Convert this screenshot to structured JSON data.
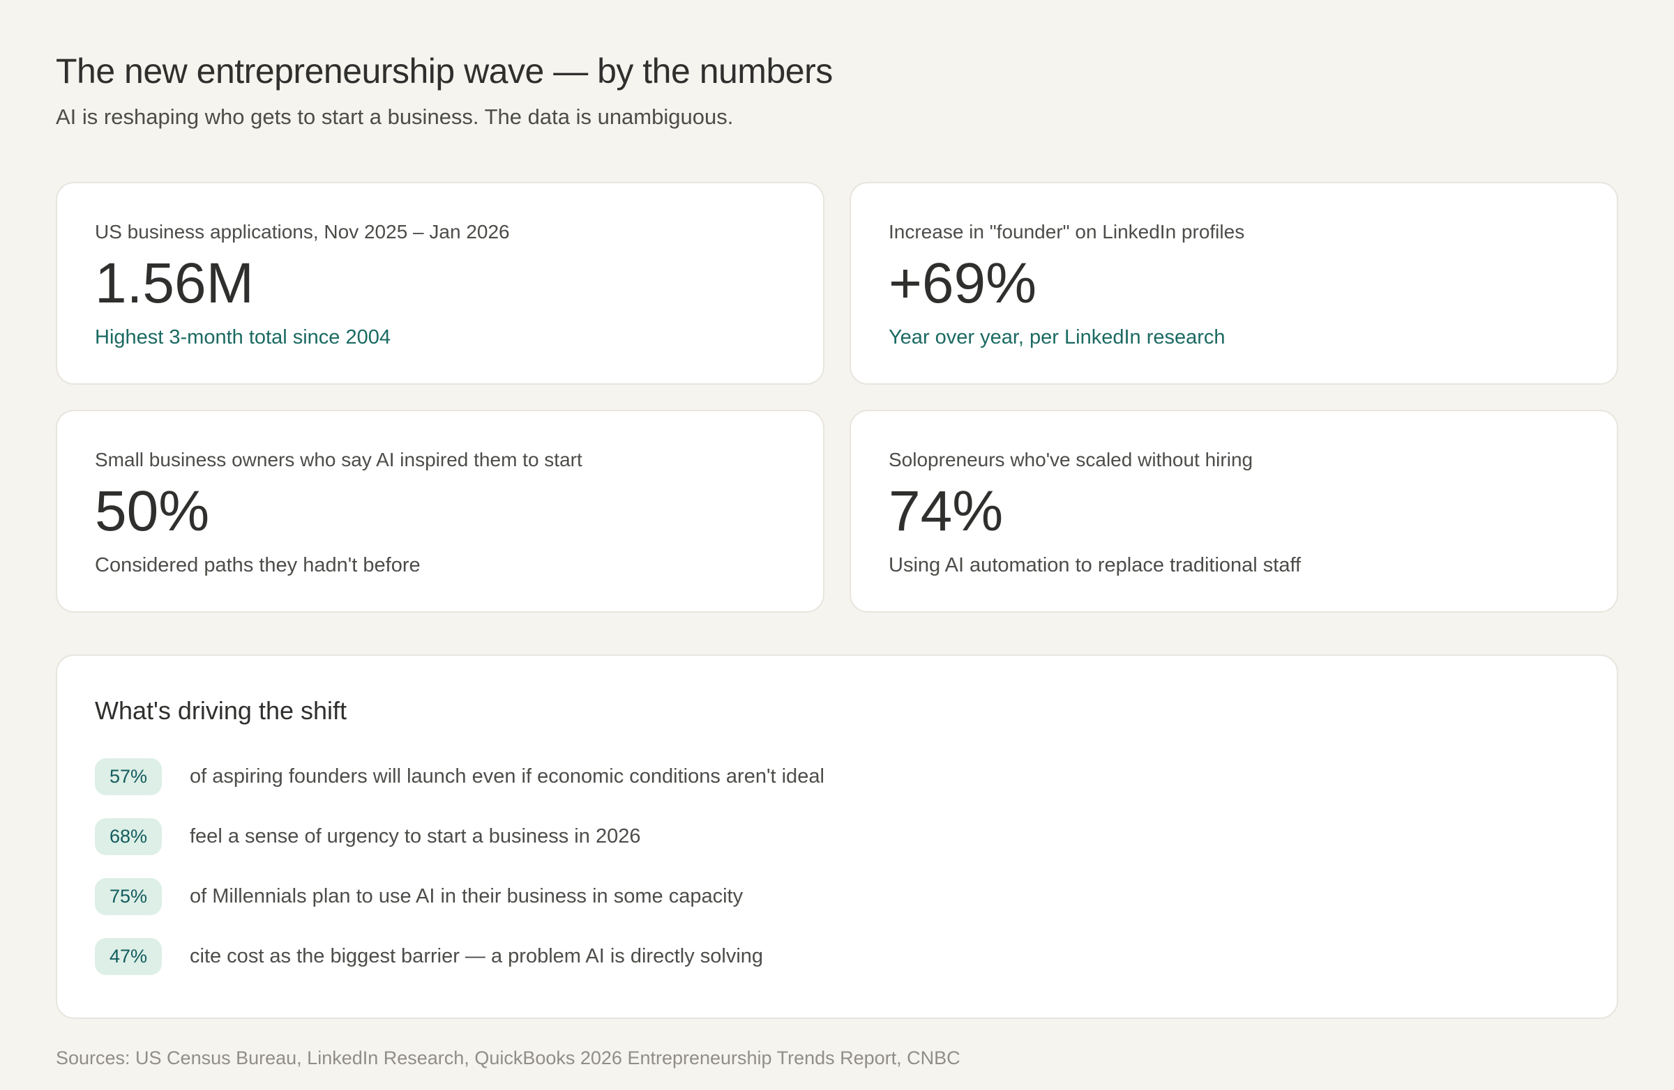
{
  "page": {
    "title": "The new entrepreneurship wave — by the numbers",
    "subtitle": "AI is reshaping who gets to start a business. The data is unambiguous.",
    "sources": "Sources: US Census Bureau, LinkedIn Research, QuickBooks 2026 Entrepreneurship Trends Report, CNBC"
  },
  "stat_cards": [
    {
      "label": "US business applications, Nov 2025 – Jan 2026",
      "value": "1.56M",
      "note": "Highest 3-month total since 2004",
      "note_style": "teal"
    },
    {
      "label": "Increase in \"founder\" on LinkedIn profiles",
      "value": "+69%",
      "note": "Year over year, per LinkedIn research",
      "note_style": "teal"
    },
    {
      "label": "Small business owners who say AI inspired them to start",
      "value": "50%",
      "note": "Considered paths they hadn't before",
      "note_style": "gray"
    },
    {
      "label": "Solopreneurs who've scaled without hiring",
      "value": "74%",
      "note": "Using AI automation to replace traditional staff",
      "note_style": "gray"
    }
  ],
  "drivers": {
    "heading": "What's driving the shift",
    "items": [
      {
        "stat": "57%",
        "text": "of aspiring founders will launch even if economic conditions aren't ideal"
      },
      {
        "stat": "68%",
        "text": "feel a sense of urgency to start a business in 2026"
      },
      {
        "stat": "75%",
        "text": "of Millennials plan to use AI in their business in some capacity"
      },
      {
        "stat": "47%",
        "text": "cite cost as the biggest barrier — a problem AI is directly solving"
      }
    ]
  },
  "colors": {
    "background": "#F5F4EF",
    "card_bg": "#FFFFFF",
    "card_border": "#E7E5DD",
    "teal": "#1B6A62",
    "badge_bg": "#DDEFE6",
    "badge_text": "#135B5E",
    "text_dark": "#2F2F2D",
    "text_gray": "#4C4C49",
    "text_muted": "#908E86"
  }
}
